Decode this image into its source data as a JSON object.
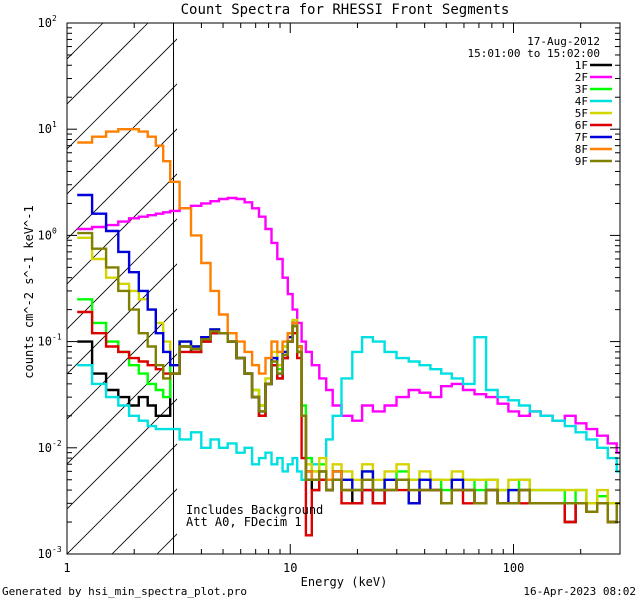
{
  "chart_data": {
    "type": "line",
    "title": "Count Spectra for RHESSI Front Segments",
    "xlabel": "Energy (keV)",
    "ylabel": "counts cm^-2 s^-1 keV^-1",
    "xscale": "log",
    "yscale": "log",
    "xlim": [
      1,
      300
    ],
    "ylim": [
      0.001,
      100
    ],
    "x_ticks": [
      {
        "value": 1,
        "label": "1"
      },
      {
        "value": 10,
        "label": "10"
      },
      {
        "value": 100,
        "label": "100"
      }
    ],
    "y_ticks": [
      {
        "value": 0.001,
        "label": "10",
        "exp": "-3"
      },
      {
        "value": 0.01,
        "label": "10",
        "exp": "-2"
      },
      {
        "value": 0.1,
        "label": "10",
        "exp": "-1"
      },
      {
        "value": 1,
        "label": "10",
        "exp": "0"
      },
      {
        "value": 10,
        "label": "10",
        "exp": "1"
      },
      {
        "value": 100,
        "label": "10",
        "exp": "2"
      }
    ],
    "hatch_region": {
      "from": 1,
      "to": 3
    },
    "date": "17-Aug-2012",
    "time_range": "15:01:00 to 15:02:00",
    "annotation_lines": [
      "Includes Background",
      "Att A0, FDecim 1"
    ],
    "energies": [
      1.2,
      1.4,
      1.6,
      1.8,
      2.0,
      2.2,
      2.4,
      2.6,
      2.8,
      3.0,
      3.4,
      3.8,
      4.2,
      4.6,
      5.0,
      5.5,
      6.0,
      6.5,
      7.0,
      7.5,
      8.0,
      8.5,
      9.0,
      9.5,
      10,
      10.5,
      11,
      11.5,
      12,
      13,
      14,
      15,
      16,
      18,
      20,
      22,
      25,
      28,
      32,
      36,
      40,
      45,
      50,
      56,
      63,
      71,
      80,
      90,
      100,
      112,
      125,
      140,
      160,
      180,
      200,
      225,
      250,
      280,
      300
    ],
    "series": [
      {
        "name": "1F",
        "color": "#000000",
        "values": [
          0.1,
          0.05,
          0.035,
          0.03,
          0.025,
          0.03,
          0.025,
          0.02,
          0.02,
          0.05,
          0.09,
          0.08,
          0.1,
          0.12,
          0.12,
          0.1,
          0.07,
          0.05,
          0.03,
          0.02,
          0.04,
          0.06,
          0.045,
          0.07,
          0.1,
          0.14,
          0.08,
          0.02,
          0.005,
          0.004,
          0.005,
          0.004,
          0.005,
          0.004,
          0.003,
          0.004,
          0.003,
          0.004,
          0.005,
          0.003,
          0.004,
          0.004,
          0.003,
          0.004,
          0.004,
          0.003,
          0.004,
          0.003,
          0.003,
          0.004,
          0.003,
          0.003,
          0.003,
          0.002,
          0.003,
          0.0025,
          0.003,
          0.002,
          0.003
        ]
      },
      {
        "name": "2F",
        "color": "#ff00ff",
        "values": [
          1.15,
          1.2,
          1.25,
          1.35,
          1.45,
          1.5,
          1.55,
          1.6,
          1.65,
          1.7,
          1.8,
          1.9,
          2.0,
          2.1,
          2.2,
          2.25,
          2.2,
          2.05,
          1.8,
          1.5,
          1.15,
          0.85,
          0.6,
          0.4,
          0.28,
          0.2,
          0.15,
          0.1,
          0.08,
          0.06,
          0.045,
          0.035,
          0.025,
          0.02,
          0.018,
          0.025,
          0.022,
          0.025,
          0.03,
          0.035,
          0.033,
          0.03,
          0.038,
          0.04,
          0.035,
          0.032,
          0.03,
          0.026,
          0.022,
          0.02,
          0.022,
          0.02,
          0.018,
          0.02,
          0.017,
          0.015,
          0.013,
          0.011,
          0.009
        ]
      },
      {
        "name": "3F",
        "color": "#00ff00",
        "values": [
          0.25,
          0.15,
          0.1,
          0.08,
          0.06,
          0.05,
          0.04,
          0.035,
          0.03,
          0.06,
          0.1,
          0.09,
          0.11,
          0.13,
          0.12,
          0.1,
          0.07,
          0.05,
          0.035,
          0.025,
          0.04,
          0.07,
          0.055,
          0.09,
          0.12,
          0.15,
          0.09,
          0.025,
          0.008,
          0.006,
          0.007,
          0.005,
          0.006,
          0.005,
          0.004,
          0.006,
          0.004,
          0.005,
          0.006,
          0.005,
          0.005,
          0.005,
          0.004,
          0.005,
          0.005,
          0.004,
          0.005,
          0.004,
          0.004,
          0.005,
          0.004,
          0.004,
          0.004,
          0.003,
          0.004,
          0.003,
          0.0035,
          0.003,
          0.003
        ]
      },
      {
        "name": "4F",
        "color": "#00e0e0",
        "values": [
          0.06,
          0.04,
          0.03,
          0.025,
          0.02,
          0.018,
          0.016,
          0.015,
          0.015,
          0.015,
          0.012,
          0.014,
          0.01,
          0.012,
          0.01,
          0.011,
          0.009,
          0.01,
          0.007,
          0.008,
          0.009,
          0.007,
          0.008,
          0.006,
          0.007,
          0.008,
          0.006,
          0.005,
          0.006,
          0.007,
          0.006,
          0.012,
          0.02,
          0.045,
          0.08,
          0.11,
          0.1,
          0.08,
          0.07,
          0.065,
          0.06,
          0.055,
          0.05,
          0.045,
          0.04,
          0.11,
          0.035,
          0.03,
          0.028,
          0.025,
          0.022,
          0.02,
          0.018,
          0.016,
          0.014,
          0.012,
          0.01,
          0.008,
          0.006
        ]
      },
      {
        "name": "5F",
        "color": "#d4d400",
        "values": [
          0.95,
          0.6,
          0.4,
          0.35,
          0.3,
          0.25,
          0.2,
          0.15,
          0.1,
          0.06,
          0.1,
          0.09,
          0.11,
          0.13,
          0.12,
          0.1,
          0.07,
          0.05,
          0.035,
          0.025,
          0.045,
          0.08,
          0.06,
          0.09,
          0.12,
          0.16,
          0.09,
          0.02,
          0.007,
          0.006,
          0.008,
          0.005,
          0.007,
          0.006,
          0.005,
          0.007,
          0.005,
          0.006,
          0.007,
          0.005,
          0.006,
          0.005,
          0.005,
          0.006,
          0.005,
          0.005,
          0.005,
          0.004,
          0.005,
          0.005,
          0.004,
          0.004,
          0.004,
          0.004,
          0.004,
          0.003,
          0.004,
          0.003,
          0.003
        ]
      },
      {
        "name": "6F",
        "color": "#dd0000",
        "values": [
          0.19,
          0.12,
          0.09,
          0.08,
          0.07,
          0.065,
          0.06,
          0.055,
          0.05,
          0.05,
          0.08,
          0.08,
          0.1,
          0.12,
          0.12,
          0.1,
          0.07,
          0.05,
          0.03,
          0.02,
          0.04,
          0.06,
          0.045,
          0.07,
          0.1,
          0.12,
          0.07,
          0.008,
          0.0015,
          0.004,
          0.005,
          0.004,
          0.005,
          0.003,
          0.003,
          0.004,
          0.003,
          0.004,
          0.004,
          0.003,
          0.004,
          0.004,
          0.003,
          0.004,
          0.003,
          0.003,
          0.004,
          0.003,
          0.003,
          0.003,
          0.003,
          0.003,
          0.003,
          0.002,
          0.003,
          0.0025,
          0.003,
          0.002,
          0.003
        ]
      },
      {
        "name": "7F",
        "color": "#0000dd",
        "values": [
          2.4,
          1.6,
          1.1,
          0.7,
          0.45,
          0.3,
          0.2,
          0.12,
          0.08,
          0.06,
          0.1,
          0.09,
          0.11,
          0.13,
          0.12,
          0.1,
          0.07,
          0.05,
          0.03,
          0.022,
          0.04,
          0.07,
          0.05,
          0.08,
          0.11,
          0.15,
          0.09,
          0.02,
          0.006,
          0.005,
          0.006,
          0.004,
          0.006,
          0.005,
          0.004,
          0.006,
          0.004,
          0.005,
          0.005,
          0.003,
          0.005,
          0.004,
          0.003,
          0.005,
          0.004,
          0.003,
          0.004,
          0.003,
          0.004,
          0.004,
          0.003,
          0.003,
          0.003,
          0.003,
          0.003,
          0.0025,
          0.003,
          0.002,
          0.003
        ]
      },
      {
        "name": "8F",
        "color": "#ff8000",
        "values": [
          7.5,
          8.5,
          9.5,
          10,
          10,
          9.5,
          8.5,
          7.0,
          5.0,
          3.2,
          1.8,
          1.0,
          0.55,
          0.3,
          0.18,
          0.12,
          0.1,
          0.08,
          0.06,
          0.05,
          0.07,
          0.1,
          0.08,
          0.1,
          0.12,
          0.15,
          0.09,
          0.02,
          0.006,
          0.005,
          0.006,
          0.005,
          0.006,
          0.004,
          0.004,
          0.005,
          0.004,
          0.004,
          0.005,
          0.004,
          0.004,
          0.004,
          0.003,
          0.004,
          0.004,
          0.003,
          0.004,
          0.003,
          0.003,
          0.004,
          0.003,
          0.003,
          0.003,
          0.003,
          0.003,
          0.0025,
          0.003,
          0.002,
          0.003
        ]
      },
      {
        "name": "9F",
        "color": "#808000",
        "values": [
          1.05,
          0.75,
          0.5,
          0.3,
          0.2,
          0.12,
          0.09,
          0.06,
          0.045,
          0.05,
          0.09,
          0.085,
          0.105,
          0.125,
          0.12,
          0.1,
          0.07,
          0.05,
          0.03,
          0.022,
          0.04,
          0.065,
          0.05,
          0.075,
          0.1,
          0.14,
          0.08,
          0.02,
          0.005,
          0.005,
          0.006,
          0.004,
          0.005,
          0.004,
          0.004,
          0.005,
          0.004,
          0.004,
          0.005,
          0.004,
          0.004,
          0.004,
          0.003,
          0.004,
          0.004,
          0.003,
          0.004,
          0.003,
          0.003,
          0.004,
          0.003,
          0.003,
          0.003,
          0.003,
          0.003,
          0.0025,
          0.003,
          0.002,
          0.003
        ]
      }
    ]
  },
  "footer": {
    "left": "Generated by hsi_min_spectra_plot.pro",
    "right": "16-Apr-2023 08:02"
  }
}
